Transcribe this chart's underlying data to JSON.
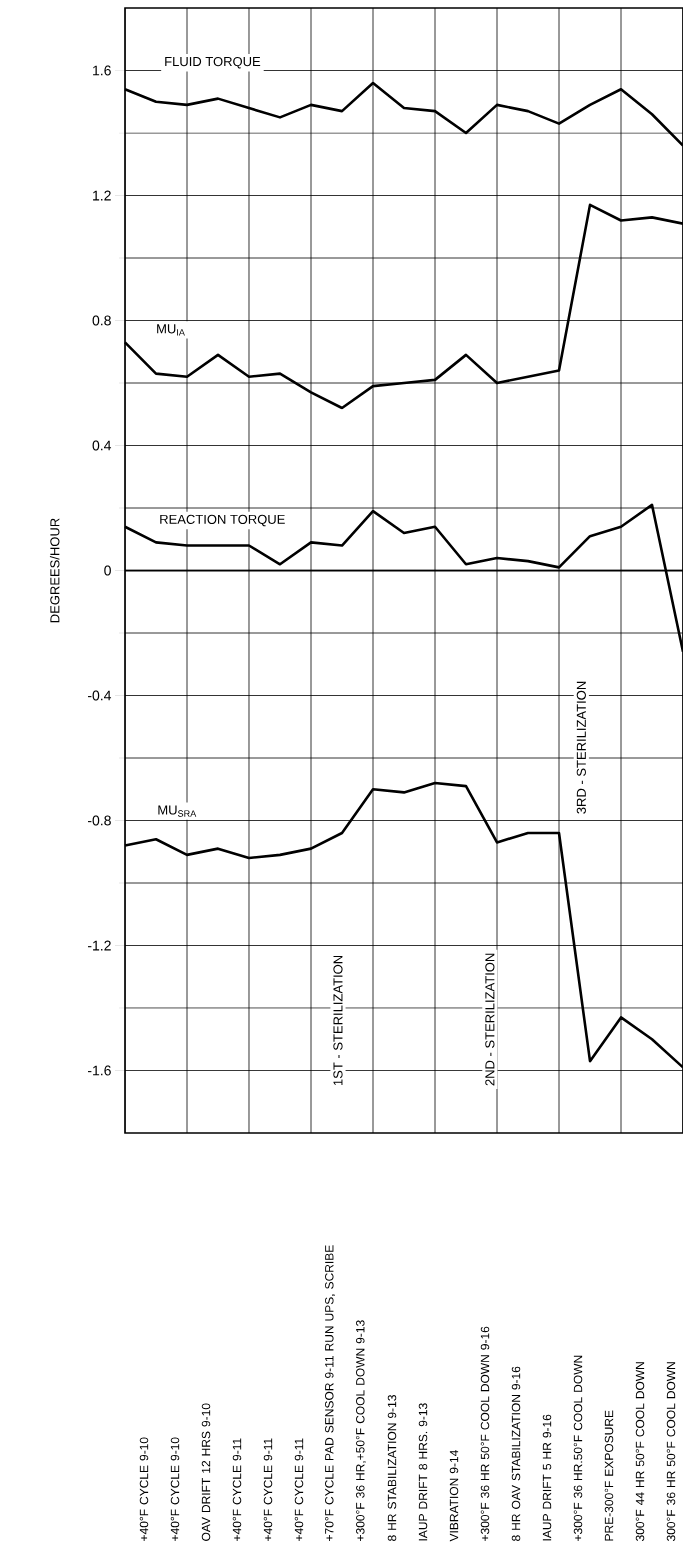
{
  "chart_data": {
    "type": "line",
    "ylabel": "DEGREES/HOUR",
    "categories": [
      null,
      "+40°F CYCLE 9-10",
      "+40°F CYCLE 9-10",
      "OAV DRIFT 12 HRS 9-10",
      "+40°F CYCLE 9-11",
      "+40°F CYCLE 9-11",
      "+40°F CYCLE 9-11",
      "+70°F CYCLE PAD SENSOR 9-11 RUN UPS, SCRIBE",
      "+300°F 36 HR,+50°F COOL DOWN 9-13",
      "8 HR STABILIZATION 9-13",
      "IAUP DRIFT 8 HRS. 9-13",
      "VIBRATION 9-14",
      "+300°F 36 HR 50°F COOL DOWN 9-16",
      "8 HR OAV STABILIZATION 9-16",
      "IAUP DRIFT 5 HR 9-16",
      "+300°F 36 HR.50°F COOL DOWN",
      "PRE-300°F EXPOSURE",
      "300°F 44 HR 50°F COOL DOWN",
      "300°F 36 HR 50°F COOL DOWN"
    ],
    "series": [
      {
        "name": "FLUID TORQUE",
        "color": "#000000",
        "values": [
          1.54,
          1.5,
          1.49,
          1.51,
          1.48,
          1.45,
          1.49,
          1.47,
          1.56,
          1.48,
          1.47,
          1.4,
          1.49,
          1.47,
          1.43,
          1.49,
          1.54,
          1.46,
          1.36
        ]
      },
      {
        "name": "MU$_{IA}$",
        "color": "#000000",
        "values": [
          0.73,
          0.63,
          0.62,
          0.69,
          0.62,
          0.63,
          0.57,
          0.52,
          0.59,
          0.6,
          0.61,
          0.69,
          0.6,
          0.62,
          0.64,
          1.17,
          1.12,
          1.13,
          1.11
        ]
      },
      {
        "name": "REACTION TORQUE",
        "color": "#000000",
        "values": [
          0.14,
          0.09,
          0.08,
          0.08,
          0.08,
          0.02,
          0.09,
          0.08,
          0.19,
          0.12,
          0.14,
          0.02,
          0.04,
          0.03,
          0.01,
          0.11,
          0.14,
          0.21,
          -0.26
        ]
      },
      {
        "name": "MU$_{SRA}$",
        "color": "#000000",
        "values": [
          -0.88,
          -0.86,
          -0.91,
          -0.89,
          -0.92,
          -0.91,
          -0.89,
          -0.84,
          -0.7,
          -0.71,
          -0.68,
          -0.69,
          -0.87,
          -0.84,
          -0.84,
          -1.57,
          -1.43,
          -1.5,
          -1.59
        ]
      }
    ],
    "ylim": [
      -1.8,
      1.8
    ],
    "yticks": [
      -1.6,
      -1.2,
      -0.8,
      -0.4,
      0,
      0.4,
      0.8,
      1.2,
      1.6
    ],
    "ref_lines": [
      {
        "axis": "y",
        "value": 0
      }
    ],
    "annotations": [
      "1ST - STERILIZATION",
      "2ND - STERILIZATION",
      "3RD - STERILIZATION"
    ],
    "grid": true,
    "legend": false,
    "marker": "none",
    "line_style": "solid"
  }
}
